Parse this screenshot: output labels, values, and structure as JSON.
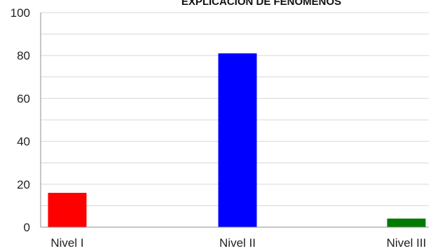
{
  "chart_data": {
    "type": "bar",
    "title": "EXPLICACIÓN DE FENÓMENOS",
    "categories": [
      "Nivel I",
      "Nivel II",
      "Nivel III"
    ],
    "values": [
      16,
      81,
      4
    ],
    "colors": [
      "#ff0000",
      "#0000ff",
      "#007a00"
    ],
    "ylim": [
      0,
      100
    ],
    "yticks": [
      0,
      20,
      40,
      60,
      80,
      100
    ],
    "xlabel": "",
    "ylabel": "",
    "grid": true,
    "legend": "none"
  }
}
